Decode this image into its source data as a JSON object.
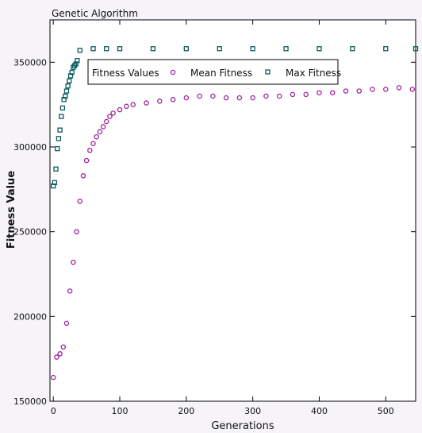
{
  "chart_data": {
    "type": "scatter",
    "title": "Genetic Algorithm",
    "xlabel": "Generations",
    "ylabel": "Fitness Value",
    "xlim": [
      -5,
      545
    ],
    "ylim": [
      150000,
      375000
    ],
    "x_ticks": [
      0,
      100,
      200,
      300,
      400,
      500
    ],
    "y_ticks": [
      150000,
      200000,
      250000,
      300000,
      350000
    ],
    "legend": {
      "title": "Fitness Values",
      "placement": "top-center",
      "entries": [
        "Mean Fitness",
        "Max Fitness"
      ]
    },
    "grid": false,
    "series": [
      {
        "name": "Mean Fitness",
        "marker": "circle",
        "color": "#a020a0",
        "x": [
          0,
          5,
          10,
          15,
          20,
          25,
          30,
          35,
          40,
          45,
          50,
          55,
          60,
          65,
          70,
          75,
          80,
          85,
          90,
          100,
          110,
          120,
          140,
          160,
          180,
          200,
          220,
          240,
          260,
          280,
          300,
          320,
          340,
          360,
          380,
          400,
          420,
          440,
          460,
          480,
          500,
          520,
          540
        ],
        "y": [
          164000,
          176000,
          178000,
          182000,
          196000,
          215000,
          232000,
          250000,
          268000,
          283000,
          292000,
          298000,
          302000,
          306000,
          309000,
          312000,
          315000,
          318000,
          320000,
          322000,
          324000,
          325000,
          326000,
          327000,
          328000,
          329000,
          330000,
          330000,
          329000,
          329000,
          329000,
          330000,
          330000,
          331000,
          331000,
          332000,
          332000,
          333000,
          333000,
          334000,
          334000,
          335000,
          334000
        ]
      },
      {
        "name": "Max Fitness",
        "marker": "square",
        "color": "#0a5a5a",
        "x": [
          0,
          2,
          4,
          6,
          8,
          10,
          12,
          14,
          16,
          18,
          20,
          22,
          24,
          26,
          28,
          30,
          32,
          34,
          36,
          40,
          60,
          80,
          100,
          150,
          200,
          250,
          300,
          350,
          400,
          450,
          500,
          545
        ],
        "y": [
          277000,
          279000,
          287000,
          299000,
          305000,
          310000,
          318000,
          323000,
          328000,
          330000,
          333000,
          336000,
          339000,
          342000,
          344000,
          347000,
          348000,
          349000,
          351000,
          357000,
          358000,
          358000,
          358000,
          358000,
          358000,
          358000,
          358000,
          358000,
          358000,
          358000,
          358000,
          358000
        ]
      }
    ]
  }
}
